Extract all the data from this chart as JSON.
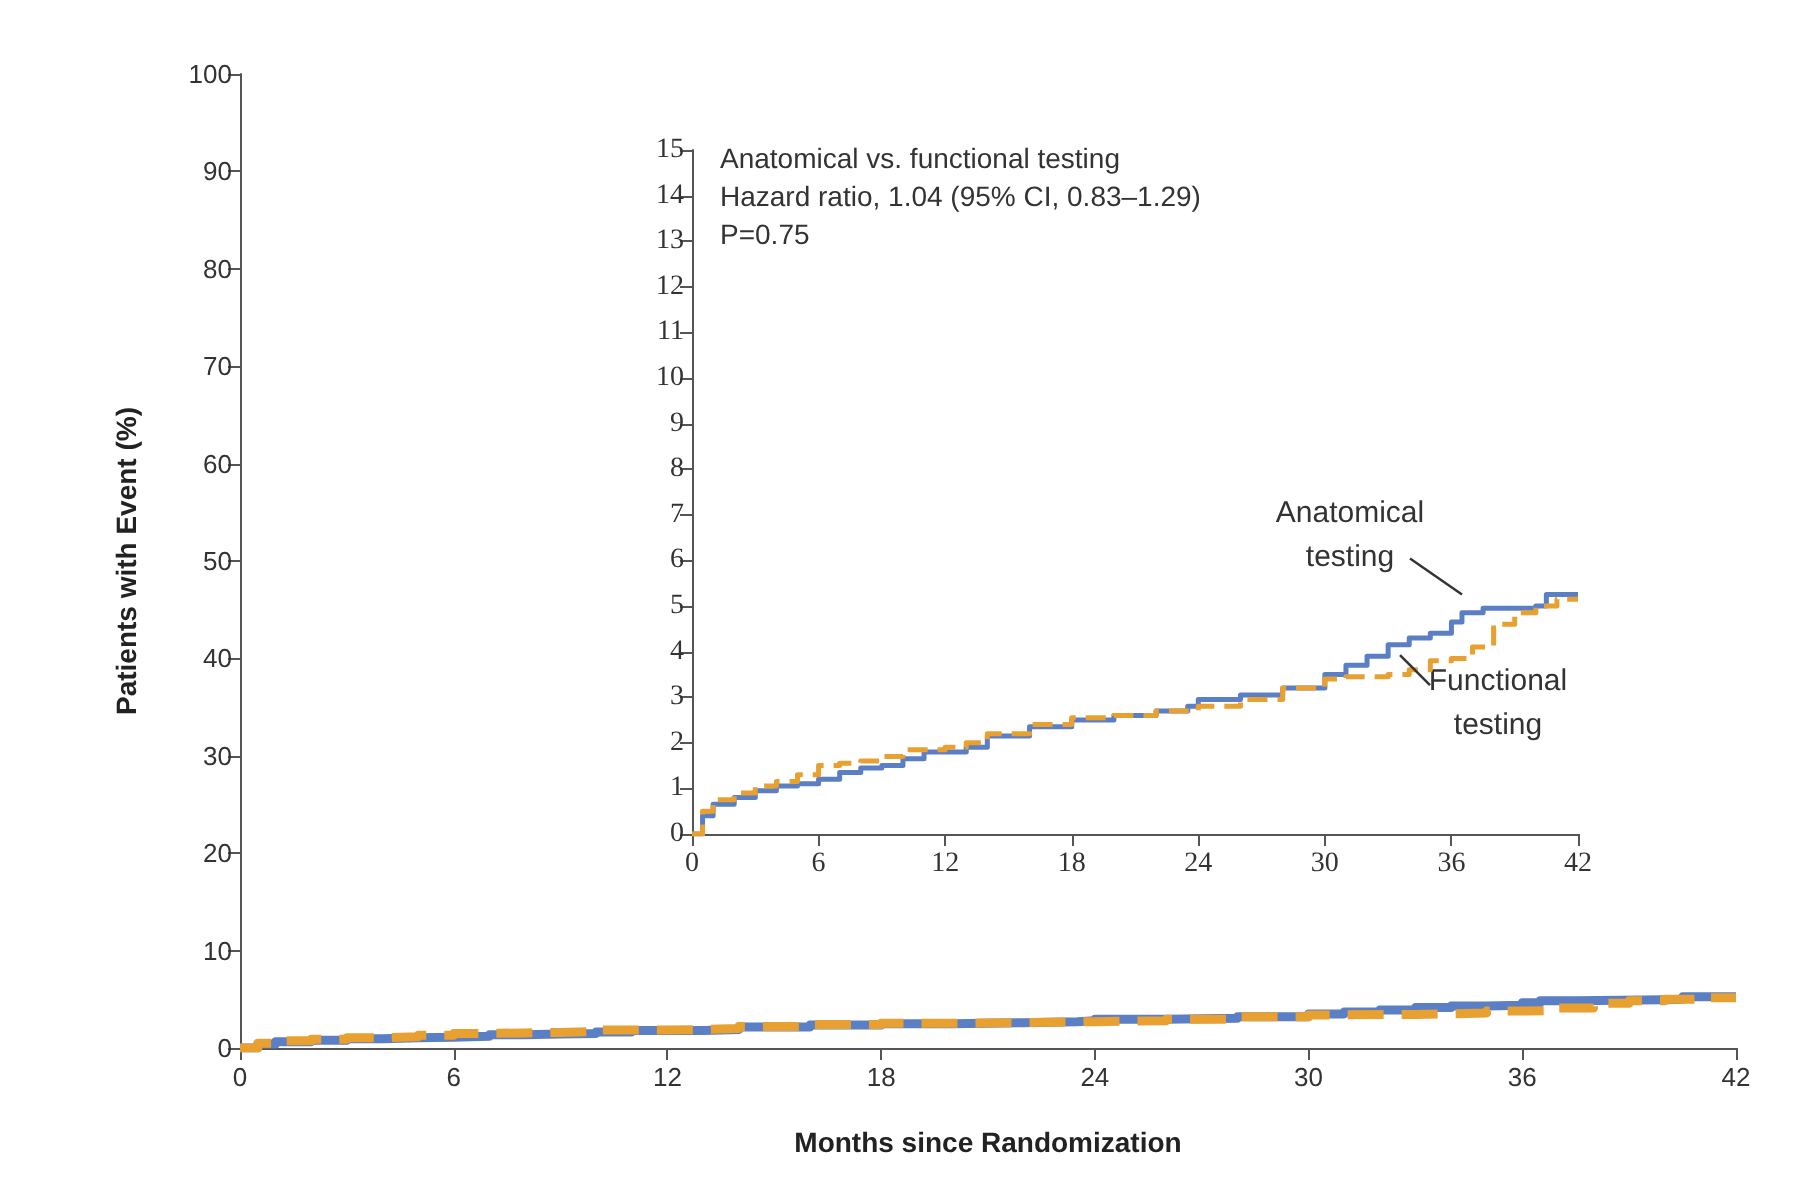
{
  "chart_data": [
    {
      "type": "step",
      "xlabel": "Months since Randomization",
      "ylabel": "Patients with Event (%)",
      "xlim": [
        0,
        42
      ],
      "xticks": [
        0,
        6,
        12,
        18,
        24,
        30,
        36,
        42
      ],
      "ylim": [
        0,
        100
      ],
      "yticks": [
        0,
        10,
        20,
        30,
        40,
        50,
        60,
        70,
        80,
        90,
        100
      ],
      "grid": false,
      "marker": "none",
      "series": [
        {
          "color": "#5b7fc4",
          "line_style": "solid",
          "x": [
            0,
            0.5,
            1,
            2,
            3,
            4,
            5,
            6,
            7,
            8,
            9,
            10,
            11,
            13,
            14,
            16,
            18,
            20,
            22,
            23.5,
            24,
            26,
            28,
            30,
            31,
            32,
            33,
            34,
            35,
            36,
            36.5,
            37.5,
            40,
            40.5,
            42
          ],
          "values": [
            0,
            0.4,
            0.65,
            0.8,
            0.95,
            1.05,
            1.1,
            1.2,
            1.35,
            1.45,
            1.5,
            1.65,
            1.8,
            1.9,
            2.15,
            2.35,
            2.5,
            2.6,
            2.7,
            2.8,
            2.95,
            3.05,
            3.2,
            3.5,
            3.7,
            3.9,
            4.15,
            4.3,
            4.4,
            4.65,
            4.85,
            4.95,
            5.0,
            5.25,
            5.25
          ]
        },
        {
          "color": "#e8a030",
          "line_style": "dashed",
          "x": [
            0,
            0.5,
            1,
            2,
            3,
            4,
            5,
            6,
            7,
            8,
            9,
            10,
            12,
            13,
            14,
            16,
            18,
            20,
            22,
            24,
            26,
            28,
            30,
            31,
            33,
            34,
            35,
            36,
            37,
            38,
            39,
            40,
            41,
            42
          ],
          "values": [
            0,
            0.5,
            0.75,
            0.9,
            1.05,
            1.15,
            1.3,
            1.5,
            1.55,
            1.6,
            1.7,
            1.85,
            1.9,
            2.0,
            2.2,
            2.4,
            2.55,
            2.6,
            2.7,
            2.8,
            2.95,
            3.2,
            3.4,
            3.45,
            3.5,
            3.6,
            3.8,
            3.85,
            4.1,
            4.6,
            4.85,
            5.0,
            5.15,
            5.15
          ]
        }
      ]
    },
    {
      "type": "step",
      "annotations": [
        "Anatomical vs. functional testing",
        "Hazard ratio, 1.04 (95% CI, 0.83–1.29)",
        "P=0.75"
      ],
      "xlim": [
        0,
        42
      ],
      "xticks": [
        0,
        6,
        12,
        18,
        24,
        30,
        36,
        42
      ],
      "ylim": [
        0,
        15
      ],
      "yticks": [
        0,
        1,
        2,
        3,
        4,
        5,
        6,
        7,
        8,
        9,
        10,
        11,
        12,
        13,
        14,
        15
      ],
      "grid": false,
      "marker": "none",
      "series": [
        {
          "name": "Anatomical testing",
          "color": "#5b7fc4",
          "line_style": "solid",
          "x": [
            0,
            0.5,
            1,
            2,
            3,
            4,
            5,
            6,
            7,
            8,
            9,
            10,
            11,
            13,
            14,
            16,
            18,
            20,
            22,
            23.5,
            24,
            26,
            28,
            30,
            31,
            32,
            33,
            34,
            35,
            36,
            36.5,
            37.5,
            40,
            40.5,
            42
          ],
          "values": [
            0,
            0.4,
            0.65,
            0.8,
            0.95,
            1.05,
            1.1,
            1.2,
            1.35,
            1.45,
            1.5,
            1.65,
            1.8,
            1.9,
            2.15,
            2.35,
            2.5,
            2.6,
            2.7,
            2.8,
            2.95,
            3.05,
            3.2,
            3.5,
            3.7,
            3.9,
            4.15,
            4.3,
            4.4,
            4.65,
            4.85,
            4.95,
            5.0,
            5.25,
            5.25
          ]
        },
        {
          "name": "Functional testing",
          "color": "#e8a030",
          "line_style": "dashed",
          "x": [
            0,
            0.5,
            1,
            2,
            3,
            4,
            5,
            6,
            7,
            8,
            9,
            10,
            12,
            13,
            14,
            16,
            18,
            20,
            22,
            24,
            26,
            28,
            30,
            31,
            33,
            34,
            35,
            36,
            37,
            38,
            39,
            40,
            41,
            42
          ],
          "values": [
            0,
            0.5,
            0.75,
            0.9,
            1.05,
            1.15,
            1.3,
            1.5,
            1.55,
            1.6,
            1.7,
            1.85,
            1.9,
            2.0,
            2.2,
            2.4,
            2.55,
            2.6,
            2.7,
            2.8,
            2.95,
            3.2,
            3.4,
            3.45,
            3.5,
            3.6,
            3.8,
            3.85,
            4.1,
            4.6,
            4.85,
            5.0,
            5.15,
            5.15
          ]
        }
      ]
    }
  ]
}
